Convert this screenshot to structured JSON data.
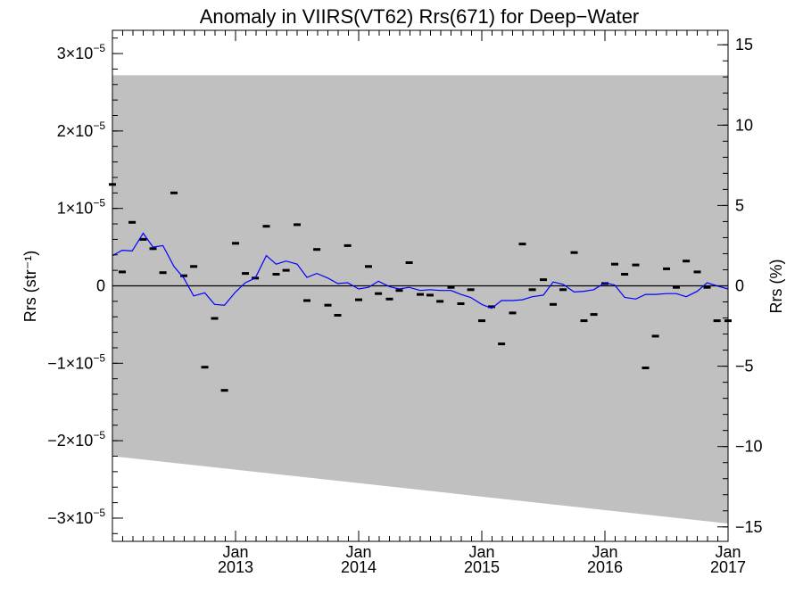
{
  "chart_data": {
    "type": "scatter",
    "title": "Anomaly in VIIRS(VT62) Rrs(671) for Deep−Water",
    "ylabel_left": "Rrs (str⁻¹)",
    "ylabel_right": "Rrs (%)",
    "xlabel": "",
    "xlim": [
      2012.0,
      2017.0
    ],
    "ylim_left": [
      -3.3e-05,
      3.3e-05
    ],
    "ylim_right": [
      -15.9,
      15.9
    ],
    "left_ticks": [
      {
        "value": 3e-05,
        "mant": "3×10",
        "exp": "−5"
      },
      {
        "value": 2e-05,
        "mant": "2×10",
        "exp": "−5"
      },
      {
        "value": 1e-05,
        "mant": "1×10",
        "exp": "−5"
      },
      {
        "value": 0,
        "mant": "0",
        "exp": ""
      },
      {
        "value": -1e-05,
        "mant": "−1×10",
        "exp": "−5"
      },
      {
        "value": -2e-05,
        "mant": "−2×10",
        "exp": "−5"
      },
      {
        "value": -3e-05,
        "mant": "−3×10",
        "exp": "−5"
      }
    ],
    "right_ticks": [
      {
        "value": 15,
        "label": "15"
      },
      {
        "value": 10,
        "label": "10"
      },
      {
        "value": 5,
        "label": "5"
      },
      {
        "value": 0,
        "label": "0"
      },
      {
        "value": -5,
        "label": "−5"
      },
      {
        "value": -10,
        "label": "−10"
      },
      {
        "value": -15,
        "label": "−15"
      }
    ],
    "x_ticks": [
      {
        "value": 2013.0,
        "month": "Jan",
        "year": "2013"
      },
      {
        "value": 2014.0,
        "month": "Jan",
        "year": "2014"
      },
      {
        "value": 2015.0,
        "month": "Jan",
        "year": "2015"
      },
      {
        "value": 2016.0,
        "month": "Jan",
        "year": "2016"
      },
      {
        "value": 2017.0,
        "month": "Jan",
        "year": "2017"
      }
    ],
    "band": {
      "x": [
        2012.0,
        2017.0
      ],
      "upper": [
        2.72e-05,
        2.72e-05
      ],
      "lower": [
        -2.2e-05,
        -3.07e-05
      ],
      "color": "#c0c0c0"
    },
    "zero_line": 0,
    "series": [
      {
        "style": "points",
        "color": "#000000",
        "x": [
          2012.0,
          2012.08,
          2012.16,
          2012.25,
          2012.33,
          2012.41,
          2012.5,
          2012.58,
          2012.66,
          2012.75,
          2012.83,
          2012.91,
          2013.0,
          2013.08,
          2013.16,
          2013.25,
          2013.33,
          2013.41,
          2013.5,
          2013.58,
          2013.66,
          2013.75,
          2013.83,
          2013.91,
          2014.0,
          2014.08,
          2014.16,
          2014.25,
          2014.33,
          2014.41,
          2014.5,
          2014.58,
          2014.66,
          2014.75,
          2014.83,
          2014.91,
          2015.0,
          2015.08,
          2015.16,
          2015.25,
          2015.33,
          2015.41,
          2015.5,
          2015.58,
          2015.66,
          2015.75,
          2015.83,
          2015.91,
          2016.0,
          2016.08,
          2016.16,
          2016.25,
          2016.33,
          2016.41,
          2016.5,
          2016.58,
          2016.66,
          2016.75,
          2016.83,
          2016.91,
          2017.0
        ],
        "y": [
          1.31e-05,
          1.8e-06,
          8.2e-06,
          6e-06,
          4.8e-06,
          1.7e-06,
          1.2e-05,
          1.3e-06,
          2.5e-06,
          -1.05e-05,
          -4.2e-06,
          -1.35e-05,
          5.5e-06,
          1.6e-06,
          1e-06,
          7.7e-06,
          1.5e-06,
          2e-06,
          7.9e-06,
          -1.9e-06,
          4.7e-06,
          -2.5e-06,
          -3.8e-06,
          5.2e-06,
          -1.8e-06,
          2.5e-06,
          -1e-06,
          -1.7e-06,
          -6e-07,
          3e-06,
          -1.1e-06,
          -1.2e-06,
          -2e-06,
          -2e-07,
          -2.3e-06,
          -5e-07,
          -4.5e-06,
          -2.7e-06,
          -7.5e-06,
          -3.5e-06,
          5.4e-06,
          -5e-07,
          8e-07,
          -2.4e-06,
          -5e-07,
          4.3e-06,
          -4.5e-06,
          -3.7e-06,
          3e-07,
          2.8e-06,
          1.5e-06,
          2.7e-06,
          -1.06e-05,
          -6.5e-06,
          2.2e-06,
          -2e-07,
          3.2e-06,
          1.8e-06,
          -2e-07,
          -4.5e-06,
          -4.5e-06
        ]
      },
      {
        "style": "line",
        "color": "#0000ff",
        "x": [
          2012.0,
          2012.08,
          2012.16,
          2012.25,
          2012.33,
          2012.41,
          2012.5,
          2012.58,
          2012.66,
          2012.75,
          2012.83,
          2012.91,
          2013.0,
          2013.08,
          2013.16,
          2013.25,
          2013.33,
          2013.41,
          2013.5,
          2013.58,
          2013.66,
          2013.75,
          2013.83,
          2013.91,
          2014.0,
          2014.08,
          2014.16,
          2014.25,
          2014.33,
          2014.41,
          2014.5,
          2014.58,
          2014.66,
          2014.75,
          2014.83,
          2014.91,
          2015.0,
          2015.08,
          2015.16,
          2015.25,
          2015.33,
          2015.41,
          2015.5,
          2015.58,
          2015.66,
          2015.75,
          2015.83,
          2015.91,
          2016.0,
          2016.08,
          2016.16,
          2016.25,
          2016.33,
          2016.41,
          2016.5,
          2016.58,
          2016.66,
          2016.75,
          2016.83,
          2016.91,
          2017.0
        ],
        "y": [
          3.9e-06,
          4.6e-06,
          4.5e-06,
          6.8e-06,
          5e-06,
          5.2e-06,
          2.5e-06,
          1e-06,
          -1.3e-06,
          -9e-07,
          -2.4e-06,
          -2.5e-06,
          -8e-07,
          4e-07,
          1e-06,
          3.9e-06,
          2.8e-06,
          3.2e-06,
          2.8e-06,
          1.1e-06,
          1.6e-06,
          1e-06,
          3e-07,
          4e-07,
          -4e-07,
          -2e-07,
          6e-07,
          -1e-07,
          -4e-07,
          -2e-07,
          -6e-07,
          -5e-07,
          -6e-07,
          -6e-07,
          -1.1e-06,
          -1.5e-06,
          -2.4e-06,
          -2.9e-06,
          -1.9e-06,
          -1.9e-06,
          -1.8e-06,
          -1.4e-06,
          -1.2e-06,
          5e-07,
          2e-07,
          -8e-07,
          -7e-07,
          -5e-07,
          4e-07,
          1e-07,
          -1.5e-06,
          -1.7e-06,
          -1.1e-06,
          -1.1e-06,
          -1e-06,
          -1e-06,
          -1.4e-06,
          -7e-07,
          4e-07,
          0,
          -4e-07
        ]
      }
    ]
  }
}
